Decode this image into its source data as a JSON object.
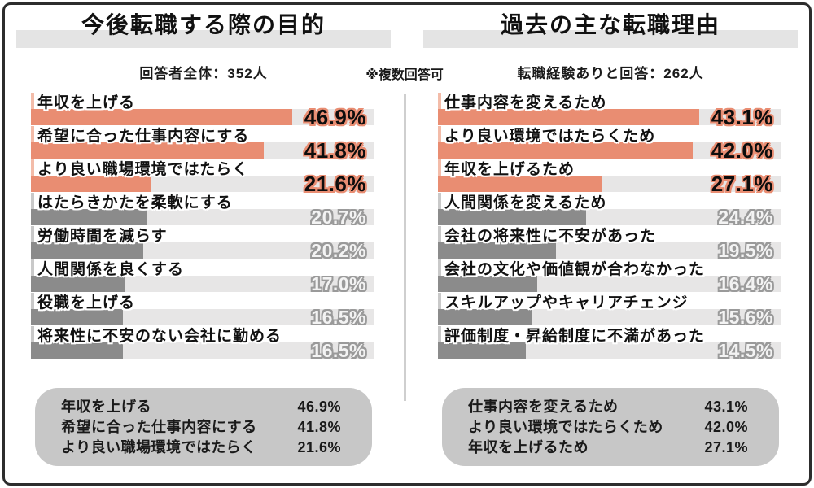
{
  "note": "※複数回答可",
  "colors": {
    "accent": "#E98D72",
    "accent_light": "#F3BCA9",
    "bar_gray": "#8B8B8B",
    "gray_light": "#C9C9C9",
    "track": "#E7E6E6",
    "band": "#E4E4E4",
    "summary_bg": "#C7C7C7",
    "divider": "#CFCFCF",
    "border": "#2D2D2D"
  },
  "chart_data": [
    {
      "type": "bar",
      "orientation": "horizontal",
      "title": "今後転職する際の目的",
      "subtitle": "回答者全体：352人",
      "unit": "%",
      "highlight_top": 3,
      "xlim": [
        0,
        62
      ],
      "items": [
        {
          "label": "年収を上げる",
          "value": 46.9
        },
        {
          "label": "希望に合った仕事内容にする",
          "value": 41.8
        },
        {
          "label": "より良い職場環境ではたらく",
          "value": 21.6
        },
        {
          "label": "はたらきかたを柔軟にする",
          "value": 20.7
        },
        {
          "label": "労働時間を減らす",
          "value": 20.2
        },
        {
          "label": "人間関係を良くする",
          "value": 17.0
        },
        {
          "label": "役職を上げる",
          "value": 16.5
        },
        {
          "label": "将来性に不安のない会社に勤める",
          "value": 16.5
        }
      ],
      "summary": [
        {
          "label": "年収を上げる",
          "value": "46.9%"
        },
        {
          "label": "希望に合った仕事内容にする",
          "value": "41.8%"
        },
        {
          "label": "より良い職場環境ではたらく",
          "value": "21.6%"
        }
      ]
    },
    {
      "type": "bar",
      "orientation": "horizontal",
      "title": "過去の主な転職理由",
      "subtitle": "転職経験ありと回答：262人",
      "unit": "%",
      "highlight_top": 3,
      "xlim": [
        0,
        57
      ],
      "items": [
        {
          "label": "仕事内容を変えるため",
          "value": 43.1
        },
        {
          "label": "より良い環境ではたらくため",
          "value": 42.0
        },
        {
          "label": "年収を上げるため",
          "value": 27.1
        },
        {
          "label": "人間関係を変えるため",
          "value": 24.4
        },
        {
          "label": "会社の将来性に不安があった",
          "value": 19.5
        },
        {
          "label": "会社の文化や価値観が合わなかった",
          "value": 16.4
        },
        {
          "label": "スキルアップやキャリアチェンジ",
          "value": 15.6
        },
        {
          "label": "評価制度・昇給制度に不満があった",
          "value": 14.5
        }
      ],
      "summary": [
        {
          "label": "仕事内容を変えるため",
          "value": "43.1%"
        },
        {
          "label": "より良い環境ではたらくため",
          "value": "42.0%"
        },
        {
          "label": "年収を上げるため",
          "value": "27.1%"
        }
      ]
    }
  ]
}
